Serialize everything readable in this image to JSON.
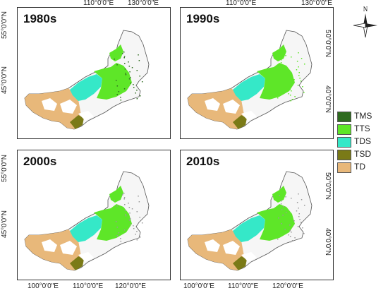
{
  "panels": [
    {
      "id": "p1980",
      "label": "1980s"
    },
    {
      "id": "p1990",
      "label": "1990s"
    },
    {
      "id": "p2000",
      "label": "2000s"
    },
    {
      "id": "p2010",
      "label": "2010s"
    }
  ],
  "axes": {
    "top_ticks": [
      "110°0'0\"E",
      "130°0'0\"E"
    ],
    "bottom_ticks": [
      "100°0'0\"E",
      "110°0'0\"E",
      "120°0'0\"E"
    ],
    "left_ticks": [
      "55°0'0\"N",
      "45°0'0\"N"
    ],
    "right_ticks": [
      "50°0'0\"N",
      "40°0'0\"N"
    ]
  },
  "legend": [
    {
      "code": "TMS",
      "color": "#2e6b1f"
    },
    {
      "code": "TTS",
      "color": "#5ee628"
    },
    {
      "code": "TDS",
      "color": "#35e8c8"
    },
    {
      "code": "TSD",
      "color": "#7a7a17"
    },
    {
      "code": "TD",
      "color": "#e8b87a"
    }
  ],
  "north_arrow": {
    "label": "N"
  }
}
